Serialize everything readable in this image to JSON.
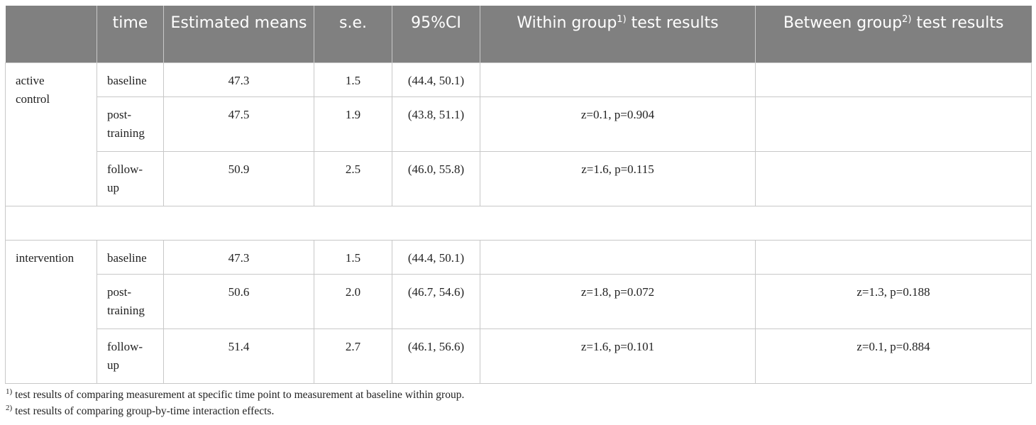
{
  "table": {
    "header": [
      {
        "text": "time"
      },
      {
        "text": "Estimated means"
      },
      {
        "text": "s.e."
      },
      {
        "text": "95%CI"
      },
      {
        "before": "Within group",
        "sup": "1)",
        "after": "test results"
      },
      {
        "before": "Between group",
        "sup": "2)",
        "after": "test results"
      }
    ],
    "groups": [
      {
        "label": "active control",
        "rows": [
          {
            "time": "baseline",
            "mean": "47.3",
            "se": "1.5",
            "ci": "(44.4, 50.1)"
          },
          {
            "time": "post-training",
            "mean": "47.5",
            "se": "1.9",
            "ci": "(43.8, 51.1)",
            "within": "z=0.1, p=0.904"
          },
          {
            "time": "follow-up",
            "mean": "50.9",
            "se": "2.5",
            "ci": "(46.0, 55.8)",
            "within": "z=1.6, p=0.115"
          }
        ]
      },
      {
        "label": "intervention",
        "rows": [
          {
            "time": "baseline",
            "mean": "47.3",
            "se": "1.5",
            "ci": "(44.4, 50.1)"
          },
          {
            "time": "post-training",
            "mean": "50.6",
            "se": "2.0",
            "ci": "(46.7, 54.6)",
            "within": "z=1.8, p=0.072",
            "between": "z=1.3, p=0.188"
          },
          {
            "time": "follow-up",
            "mean": "51.4",
            "se": "2.7",
            "ci": "(46.1, 56.6)",
            "within": "z=1.6, p=0.101",
            "between": "z=0.1, p=0.884"
          }
        ]
      }
    ]
  },
  "footnotes": [
    {
      "marker": "1)",
      "text": "test results of comparing measurement at specific time point to measurement at baseline within group."
    },
    {
      "marker": "2)",
      "text": "test results of comparing group-by-time interaction effects."
    }
  ]
}
